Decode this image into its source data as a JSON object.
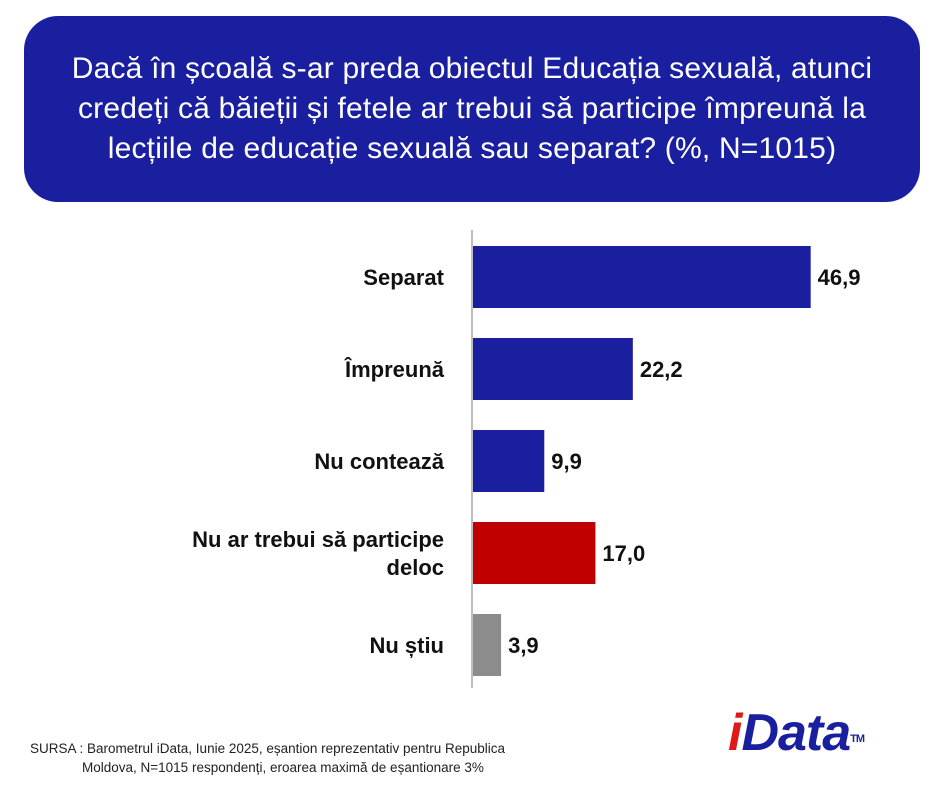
{
  "header": {
    "title": "Dacă în școală s-ar preda obiectul Educația sexuală, atunci credeți că băieții și fetele ar trebui să participe împreună la lecțiile de educație sexuală sau separat? (%, N=1015)"
  },
  "chart_data": {
    "type": "bar",
    "orientation": "horizontal",
    "categories": [
      [
        "Separat"
      ],
      [
        "Împreună"
      ],
      [
        "Nu contează"
      ],
      [
        "Nu ar trebui să participe",
        "deloc"
      ],
      [
        "Nu știu"
      ]
    ],
    "values": [
      46.9,
      22.2,
      9.9,
      17.0,
      3.9
    ],
    "value_labels": [
      "46,9",
      "22,2",
      "9,9",
      "17,0",
      "3,9"
    ],
    "bar_colors": [
      "#1a1fa0",
      "#1a1fa0",
      "#1a1fa0",
      "#c00000",
      "#8c8c8c"
    ],
    "xlim": [
      0,
      50
    ],
    "grid": false,
    "legend": "none"
  },
  "footer": {
    "source_line1": "SURSA : Barometrul iData, Iunie 2025, eșantion reprezentativ pentru Republica",
    "source_line2": "Moldova, N=1015 respondenți, eroarea maximă de eșantionare 3%",
    "logo_i": "i",
    "logo_rest": "Data",
    "logo_tm": "TM"
  },
  "colors": {
    "title_background": "#1a1fa0",
    "brand_red": "#e01818",
    "brand_blue": "#1a1fa0"
  }
}
